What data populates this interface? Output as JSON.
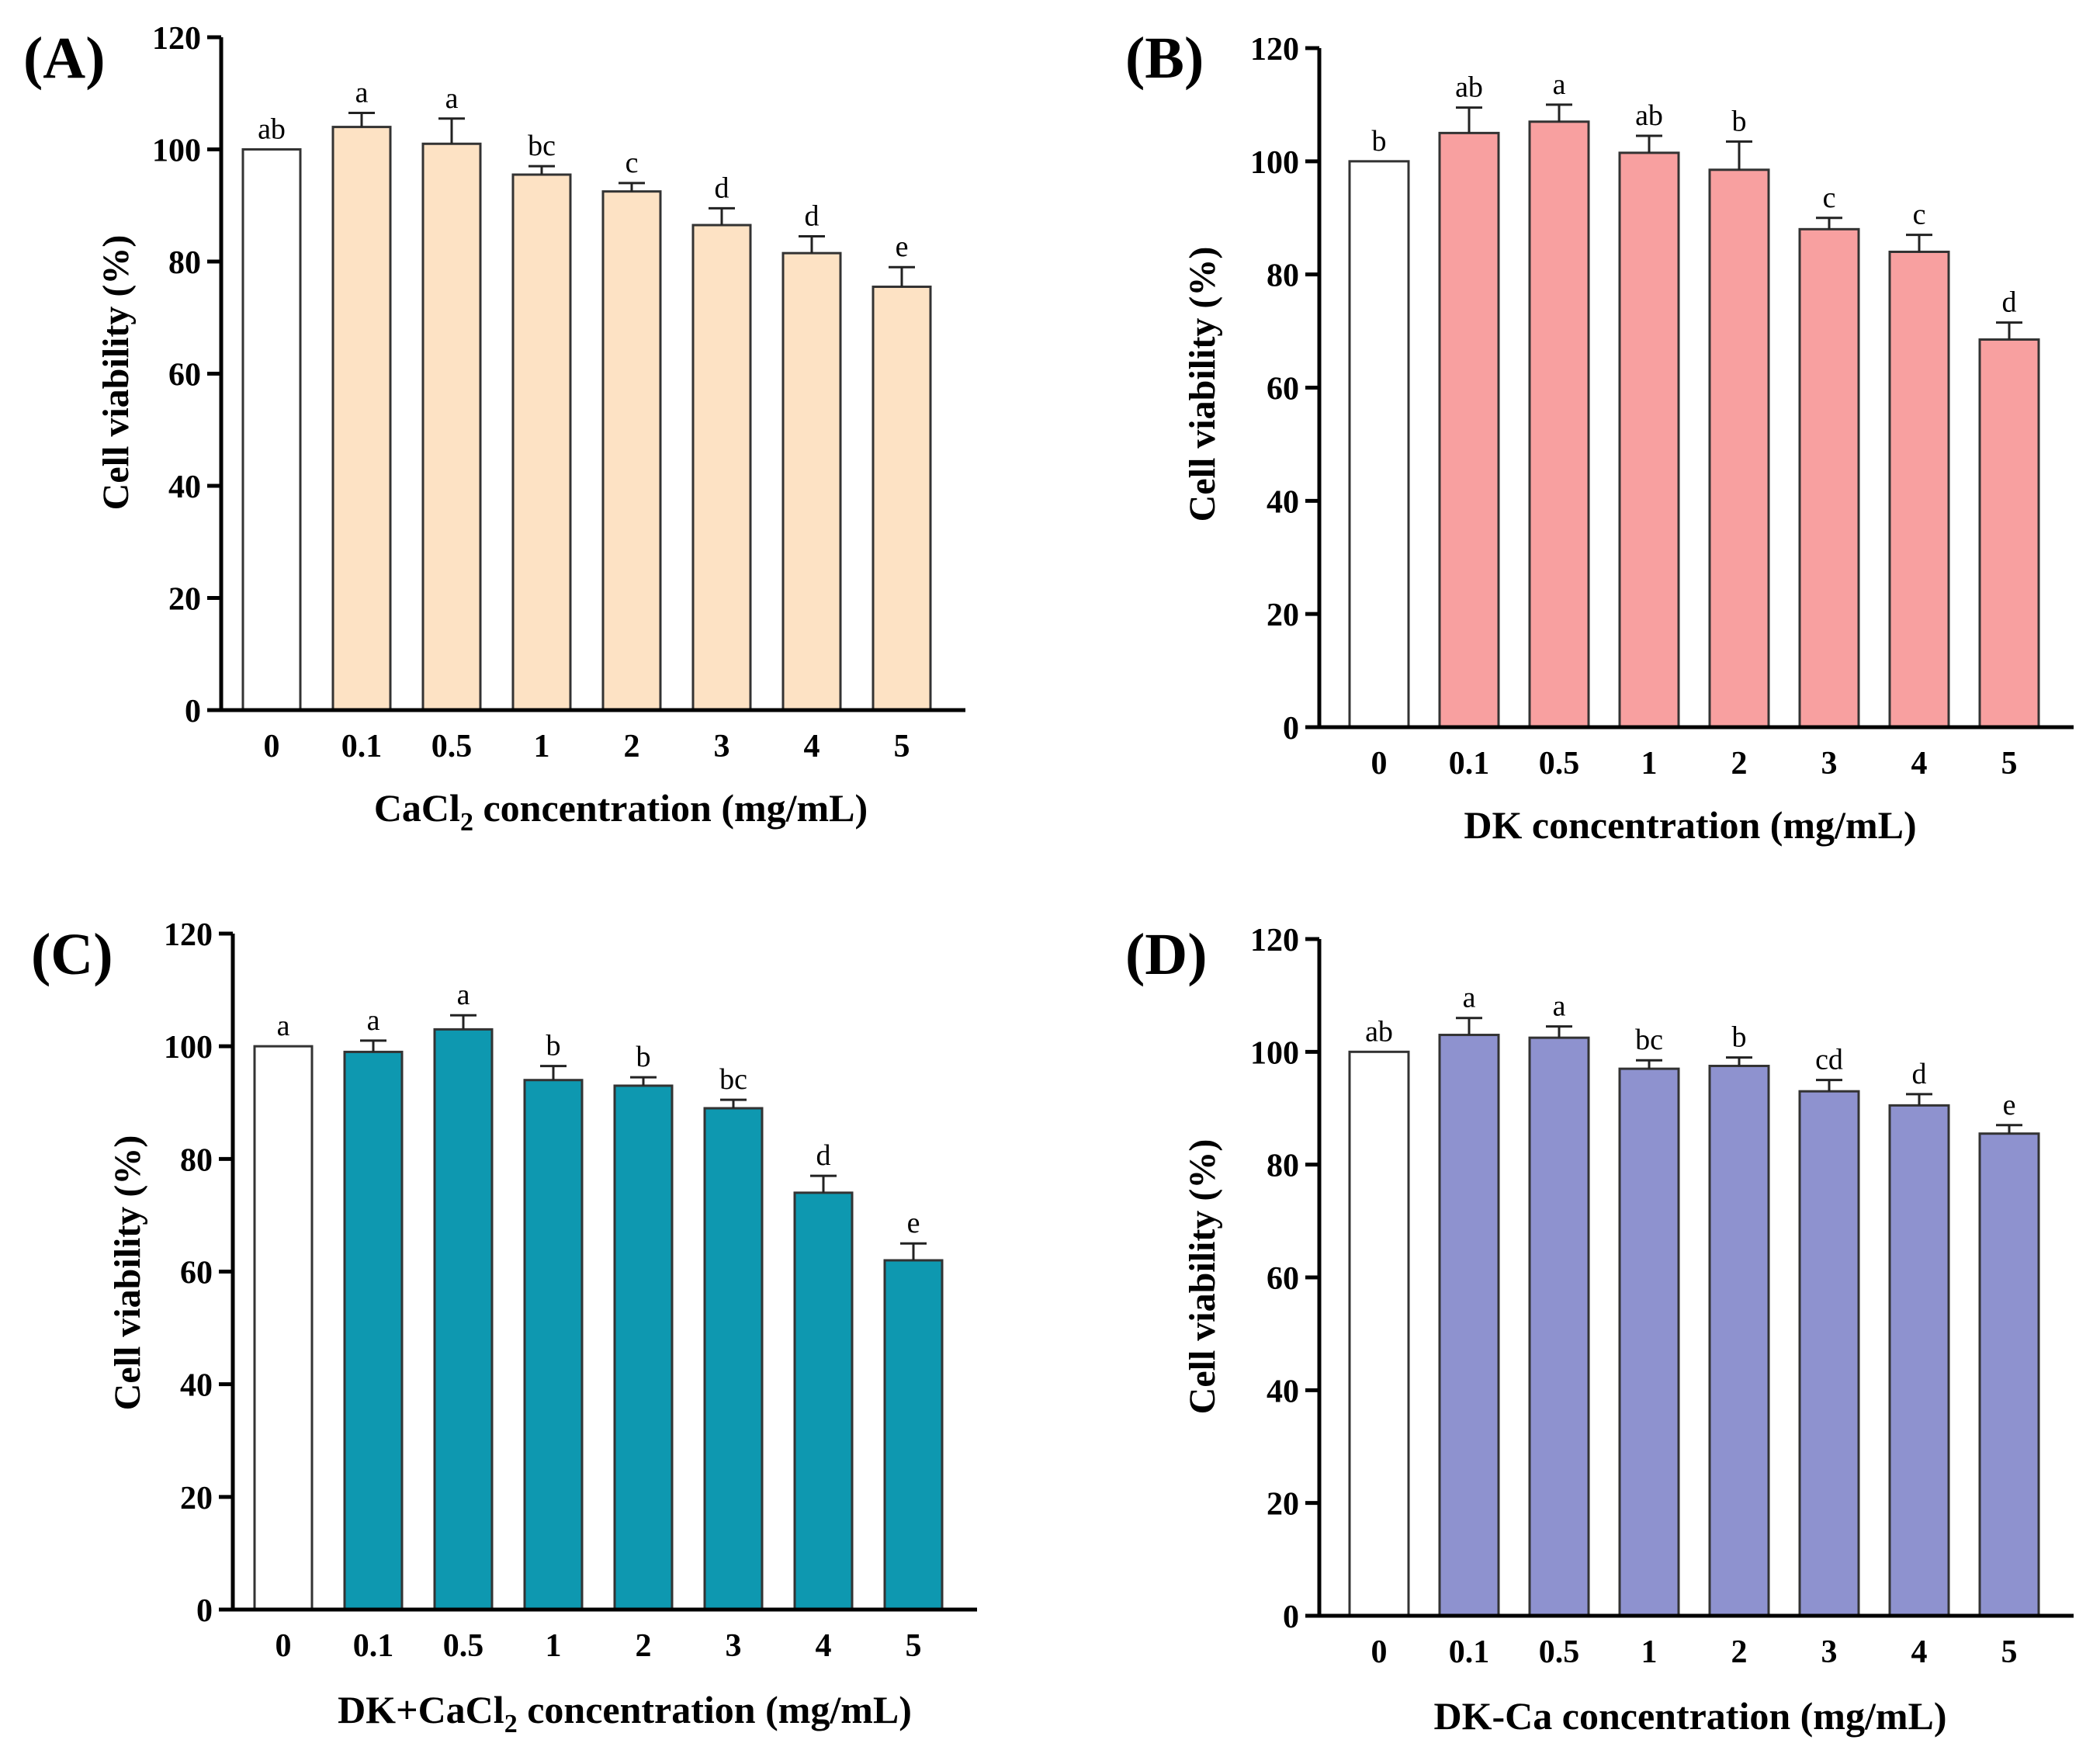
{
  "chart_data": [
    {
      "type": "bar",
      "panel": "(A)",
      "categories": [
        "0",
        "0.1",
        "0.5",
        "1",
        "2",
        "3",
        "4",
        "5"
      ],
      "values": [
        100,
        104,
        101,
        95.5,
        92.5,
        86.5,
        81.5,
        75.5
      ],
      "errors": [
        0,
        2.5,
        4.5,
        1.5,
        1.5,
        3,
        3,
        3.5
      ],
      "significance": [
        "ab",
        "a",
        "a",
        "bc",
        "c",
        "d",
        "d",
        "e"
      ],
      "ylabel": "Cell viability (%)",
      "xlabel_parts": [
        "CaCl",
        "2",
        " concentration (mg/mL)"
      ],
      "ylim": [
        0,
        120
      ],
      "yticks": [
        0,
        20,
        40,
        60,
        80,
        100,
        120
      ],
      "colors": [
        "#ffffff",
        "#fde2c4",
        "#fde2c4",
        "#fde2c4",
        "#fde2c4",
        "#fde2c4",
        "#fde2c4",
        "#fde2c4"
      ]
    },
    {
      "type": "bar",
      "panel": "(B)",
      "categories": [
        "0",
        "0.1",
        "0.5",
        "1",
        "2",
        "3",
        "4",
        "5"
      ],
      "values": [
        100,
        105,
        107,
        101.5,
        98.5,
        88,
        84,
        68.5
      ],
      "errors": [
        0,
        4.5,
        3,
        3,
        5,
        2,
        3,
        3
      ],
      "significance": [
        "b",
        "ab",
        "a",
        "ab",
        "b",
        "c",
        "c",
        "d"
      ],
      "ylabel": "Cell viability (%)",
      "xlabel_parts": [
        "DK concentration (mg/mL)"
      ],
      "ylim": [
        0,
        120
      ],
      "yticks": [
        0,
        20,
        40,
        60,
        80,
        100,
        120
      ],
      "colors": [
        "#ffffff",
        "#f8a0a0",
        "#f8a0a0",
        "#f8a0a0",
        "#f8a0a0",
        "#f8a0a0",
        "#f8a0a0",
        "#f8a0a0"
      ]
    },
    {
      "type": "bar",
      "panel": "(C)",
      "categories": [
        "0",
        "0.1",
        "0.5",
        "1",
        "2",
        "3",
        "4",
        "5"
      ],
      "values": [
        100,
        99,
        103,
        94,
        93,
        89,
        74,
        62
      ],
      "errors": [
        0,
        2,
        2.5,
        2.5,
        1.5,
        1.5,
        3,
        3
      ],
      "significance": [
        "a",
        "a",
        "a",
        "b",
        "b",
        "bc",
        "d",
        "e"
      ],
      "ylabel": "Cell viability (%)",
      "xlabel_parts": [
        "DK+CaCl",
        "2",
        " concentration  (mg/mL)"
      ],
      "ylim": [
        0,
        120
      ],
      "yticks": [
        0,
        20,
        40,
        60,
        80,
        100,
        120
      ],
      "colors": [
        "#ffffff",
        "#0e98b0",
        "#0e98b0",
        "#0e98b0",
        "#0e98b0",
        "#0e98b0",
        "#0e98b0",
        "#0e98b0"
      ]
    },
    {
      "type": "bar",
      "panel": "(D)",
      "categories": [
        "0",
        "0.1",
        "0.5",
        "1",
        "2",
        "3",
        "4",
        "5"
      ],
      "values": [
        100,
        103,
        102.5,
        97,
        97.5,
        93,
        90.5,
        85.5
      ],
      "errors": [
        0,
        3,
        2,
        1.5,
        1.5,
        2,
        2,
        1.5
      ],
      "significance": [
        "ab",
        "a",
        "a",
        "bc",
        "b",
        "cd",
        "d",
        "e"
      ],
      "ylabel": "Cell viability (%)",
      "xlabel_parts": [
        "DK-Ca concentration (mg/mL)"
      ],
      "ylim": [
        0,
        120
      ],
      "yticks": [
        0,
        20,
        40,
        60,
        80,
        100,
        120
      ],
      "colors": [
        "#ffffff",
        "#8e92cf",
        "#8e92cf",
        "#8e92cf",
        "#8e92cf",
        "#8e92cf",
        "#8e92cf",
        "#8e92cf"
      ]
    }
  ]
}
